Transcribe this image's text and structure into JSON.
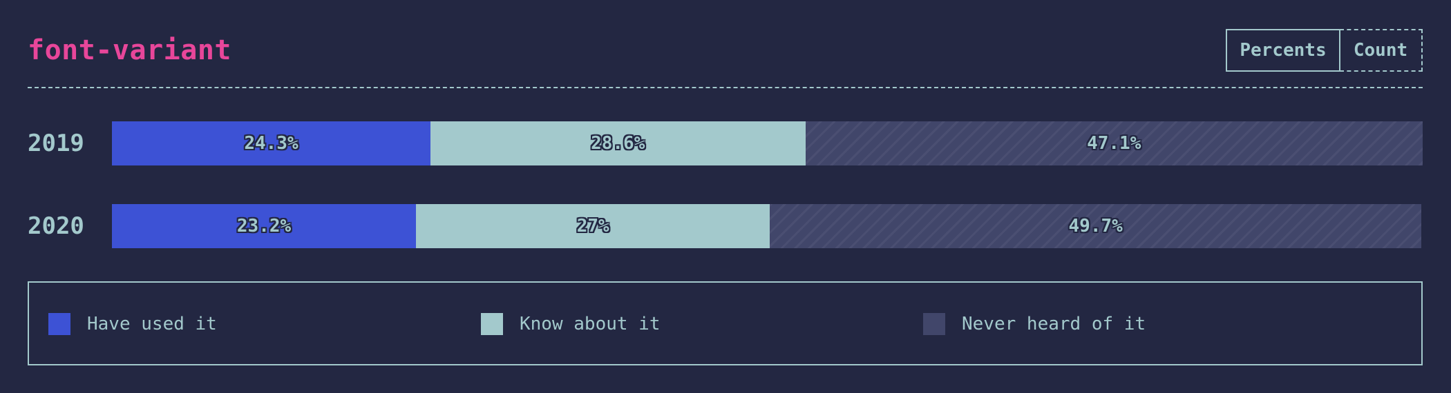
{
  "header": {
    "title": "font-variant",
    "toggle_percents": "Percents",
    "toggle_count": "Count"
  },
  "colors": {
    "background": "#232742",
    "accent": "#e8469a",
    "text": "#a3c9cc",
    "have_used": "#3d52d5",
    "know_about": "#a3c9cc",
    "never_heard": "#41466a"
  },
  "chart_data": {
    "type": "bar",
    "orientation": "horizontal",
    "stacked": true,
    "normalized": true,
    "title": "font-variant",
    "categories": [
      "2019",
      "2020"
    ],
    "series": [
      {
        "name": "Have used it",
        "values": [
          24.3,
          23.2
        ],
        "labels": [
          "24.3%",
          "23.2%"
        ]
      },
      {
        "name": "Know about it",
        "values": [
          28.6,
          27.0
        ],
        "labels": [
          "28.6%",
          "27%"
        ]
      },
      {
        "name": "Never heard of it",
        "values": [
          47.1,
          49.7
        ],
        "labels": [
          "47.1%",
          "49.7%"
        ]
      }
    ],
    "xlim": [
      0,
      100
    ],
    "legend_position": "bottom",
    "grid": false
  }
}
